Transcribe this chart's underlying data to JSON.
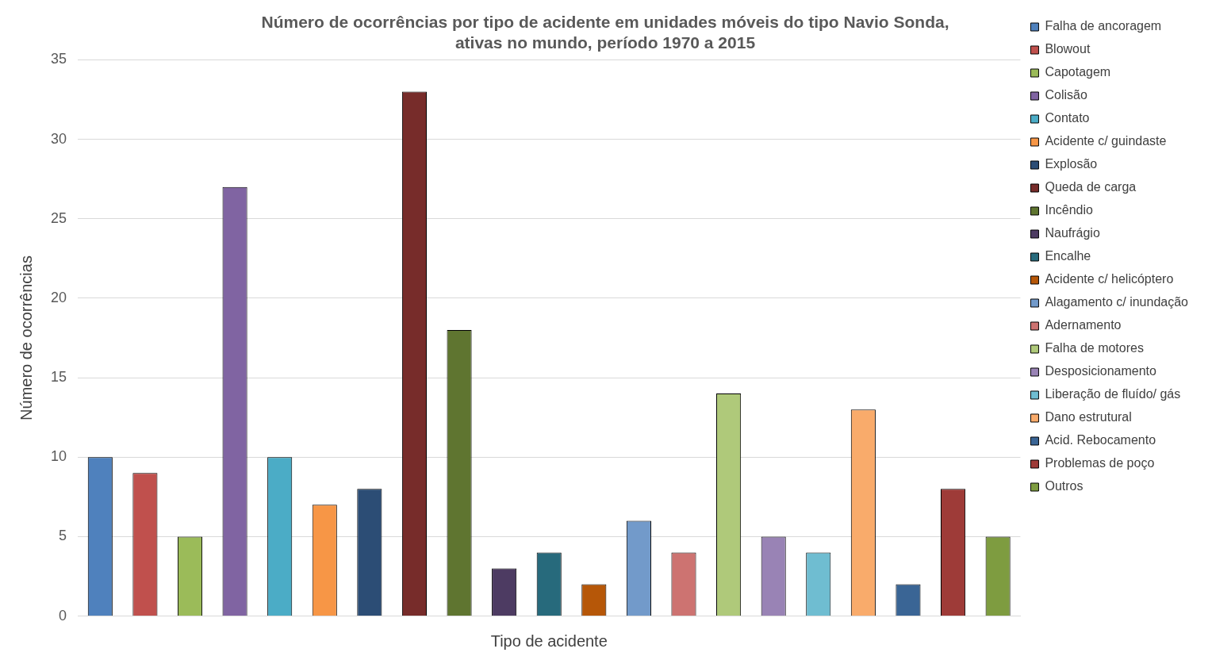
{
  "chart_data": {
    "type": "bar",
    "title": "Número de ocorrências por tipo de acidente em unidades móveis do tipo Navio Sonda, ativas no mundo, período 1970 a 2015",
    "xlabel": "Tipo de acidente",
    "ylabel": "Número de ocorrências",
    "categories": [
      null,
      null,
      null,
      null,
      null,
      null,
      null,
      null,
      null,
      null,
      null,
      null,
      null,
      null,
      null,
      null,
      null,
      null,
      null,
      null,
      null
    ],
    "series": [
      {
        "name": "Falha de ancoragem",
        "color": "#4f81bd",
        "values": [
          10,
          null,
          null,
          null,
          null,
          null,
          null,
          null,
          null,
          null,
          null,
          null,
          null,
          null,
          null,
          null,
          null,
          null,
          null,
          null,
          null
        ]
      },
      {
        "name": "Blowout",
        "color": "#c0504d",
        "values": [
          null,
          9,
          null,
          null,
          null,
          null,
          null,
          null,
          null,
          null,
          null,
          null,
          null,
          null,
          null,
          null,
          null,
          null,
          null,
          null,
          null
        ]
      },
      {
        "name": "Capotagem",
        "color": "#9bbb59",
        "values": [
          null,
          null,
          5,
          null,
          null,
          null,
          null,
          null,
          null,
          null,
          null,
          null,
          null,
          null,
          null,
          null,
          null,
          null,
          null,
          null,
          null
        ]
      },
      {
        "name": "Colisão",
        "color": "#8064a2",
        "values": [
          null,
          null,
          null,
          27,
          null,
          null,
          null,
          null,
          null,
          null,
          null,
          null,
          null,
          null,
          null,
          null,
          null,
          null,
          null,
          null,
          null
        ]
      },
      {
        "name": "Contato",
        "color": "#4bacc6",
        "values": [
          null,
          null,
          null,
          null,
          10,
          null,
          null,
          null,
          null,
          null,
          null,
          null,
          null,
          null,
          null,
          null,
          null,
          null,
          null,
          null,
          null
        ]
      },
      {
        "name": "Acidente c/ guindaste",
        "color": "#f79646",
        "values": [
          null,
          null,
          null,
          null,
          null,
          7,
          null,
          null,
          null,
          null,
          null,
          null,
          null,
          null,
          null,
          null,
          null,
          null,
          null,
          null,
          null
        ]
      },
      {
        "name": "Explosão",
        "color": "#2c4d75",
        "values": [
          null,
          null,
          null,
          null,
          null,
          null,
          8,
          null,
          null,
          null,
          null,
          null,
          null,
          null,
          null,
          null,
          null,
          null,
          null,
          null,
          null
        ]
      },
      {
        "name": "Queda de carga",
        "color": "#772c2a",
        "values": [
          null,
          null,
          null,
          null,
          null,
          null,
          null,
          33,
          null,
          null,
          null,
          null,
          null,
          null,
          null,
          null,
          null,
          null,
          null,
          null,
          null
        ]
      },
      {
        "name": "Incêndio",
        "color": "#5f7530",
        "values": [
          null,
          null,
          null,
          null,
          null,
          null,
          null,
          null,
          18,
          null,
          null,
          null,
          null,
          null,
          null,
          null,
          null,
          null,
          null,
          null,
          null
        ]
      },
      {
        "name": "Naufrágio",
        "color": "#4d3b62",
        "values": [
          null,
          null,
          null,
          null,
          null,
          null,
          null,
          null,
          null,
          3,
          null,
          null,
          null,
          null,
          null,
          null,
          null,
          null,
          null,
          null,
          null
        ]
      },
      {
        "name": "Encalhe",
        "color": "#276a7c",
        "values": [
          null,
          null,
          null,
          null,
          null,
          null,
          null,
          null,
          null,
          null,
          4,
          null,
          null,
          null,
          null,
          null,
          null,
          null,
          null,
          null,
          null
        ]
      },
      {
        "name": "Acidente c/ helicóptero",
        "color": "#b65708",
        "values": [
          null,
          null,
          null,
          null,
          null,
          null,
          null,
          null,
          null,
          null,
          null,
          2,
          null,
          null,
          null,
          null,
          null,
          null,
          null,
          null,
          null
        ]
      },
      {
        "name": "Alagamento c/ inundação",
        "color": "#729aca",
        "values": [
          null,
          null,
          null,
          null,
          null,
          null,
          null,
          null,
          null,
          null,
          null,
          null,
          6,
          null,
          null,
          null,
          null,
          null,
          null,
          null,
          null
        ]
      },
      {
        "name": "Adernamento",
        "color": "#cd7371",
        "values": [
          null,
          null,
          null,
          null,
          null,
          null,
          null,
          null,
          null,
          null,
          null,
          null,
          null,
          4,
          null,
          null,
          null,
          null,
          null,
          null,
          null
        ]
      },
      {
        "name": "Falha de motores",
        "color": "#afc97a",
        "values": [
          null,
          null,
          null,
          null,
          null,
          null,
          null,
          null,
          null,
          null,
          null,
          null,
          null,
          null,
          14,
          null,
          null,
          null,
          null,
          null,
          null
        ]
      },
      {
        "name": "Desposicionamento",
        "color": "#9983b5",
        "values": [
          null,
          null,
          null,
          null,
          null,
          null,
          null,
          null,
          null,
          null,
          null,
          null,
          null,
          null,
          null,
          5,
          null,
          null,
          null,
          null,
          null
        ]
      },
      {
        "name": "Liberação de fluído/ gás",
        "color": "#6fbdd1",
        "values": [
          null,
          null,
          null,
          null,
          null,
          null,
          null,
          null,
          null,
          null,
          null,
          null,
          null,
          null,
          null,
          null,
          4,
          null,
          null,
          null,
          null
        ]
      },
      {
        "name": "Dano estrutural",
        "color": "#f9ab6b",
        "values": [
          null,
          null,
          null,
          null,
          null,
          null,
          null,
          null,
          null,
          null,
          null,
          null,
          null,
          null,
          null,
          null,
          null,
          13,
          null,
          null,
          null
        ]
      },
      {
        "name": "Acid. Rebocamento",
        "color": "#3a6595",
        "values": [
          null,
          null,
          null,
          null,
          null,
          null,
          null,
          null,
          null,
          null,
          null,
          null,
          null,
          null,
          null,
          null,
          null,
          null,
          2,
          null,
          null
        ]
      },
      {
        "name": "Problemas de poço",
        "color": "#9e3b38",
        "values": [
          null,
          null,
          null,
          null,
          null,
          null,
          null,
          null,
          null,
          null,
          null,
          null,
          null,
          null,
          null,
          null,
          null,
          null,
          null,
          8,
          null
        ]
      },
      {
        "name": "Outros",
        "color": "#7e9c40",
        "values": [
          null,
          null,
          null,
          null,
          null,
          null,
          null,
          null,
          null,
          null,
          null,
          null,
          null,
          null,
          null,
          null,
          null,
          null,
          null,
          null,
          5
        ]
      }
    ],
    "ylim": [
      0,
      35
    ],
    "yticks": [
      0,
      5,
      10,
      15,
      20,
      25,
      30,
      35
    ],
    "grid": "y",
    "legend": "right"
  }
}
